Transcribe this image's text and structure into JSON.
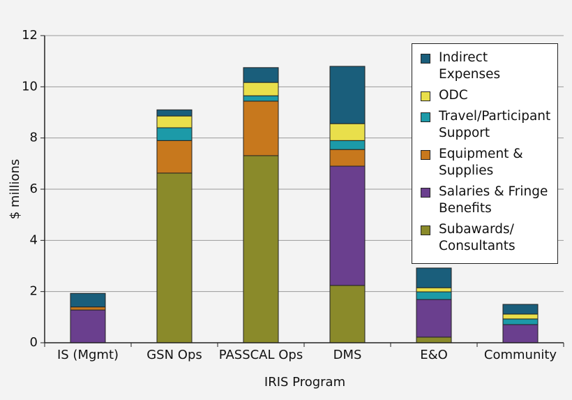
{
  "chart_data": {
    "type": "stacked_bar",
    "x_label": "IRIS Program",
    "y_label": "$ millions",
    "categories": [
      "IS (Mgmt)",
      "GSN Ops",
      "PASSCAL Ops",
      "DMS",
      "E&O",
      "Community"
    ],
    "series": [
      {
        "name": "Subawards/ Consultants",
        "color": "#8a8a2a",
        "values": [
          0,
          6.63,
          7.31,
          2.24,
          0.22,
          0
        ]
      },
      {
        "name": "Salaries & Fringe Benefits",
        "color": "#6a3f8e",
        "values": [
          1.28,
          0,
          0,
          4.66,
          1.47,
          0.71
        ]
      },
      {
        "name": "Equipment & Supplies",
        "color": "#c7781d",
        "values": [
          0.12,
          1.27,
          2.13,
          0.65,
          0,
          0
        ]
      },
      {
        "name": "Travel/Participant Support",
        "color": "#1c9aa8",
        "values": [
          0,
          0.5,
          0.21,
          0.35,
          0.3,
          0.22
        ]
      },
      {
        "name": "ODC",
        "color": "#e9df4b",
        "values": [
          0,
          0.46,
          0.52,
          0.66,
          0.16,
          0.19
        ]
      },
      {
        "name": "Indirect Expenses",
        "color": "#1a5e7b",
        "values": [
          0.53,
          0.24,
          0.58,
          2.24,
          0.77,
          0.38
        ]
      }
    ],
    "ylim": [
      0,
      12
    ],
    "yticks": [
      0,
      2,
      4,
      6,
      8,
      10,
      12
    ],
    "grid": true
  }
}
